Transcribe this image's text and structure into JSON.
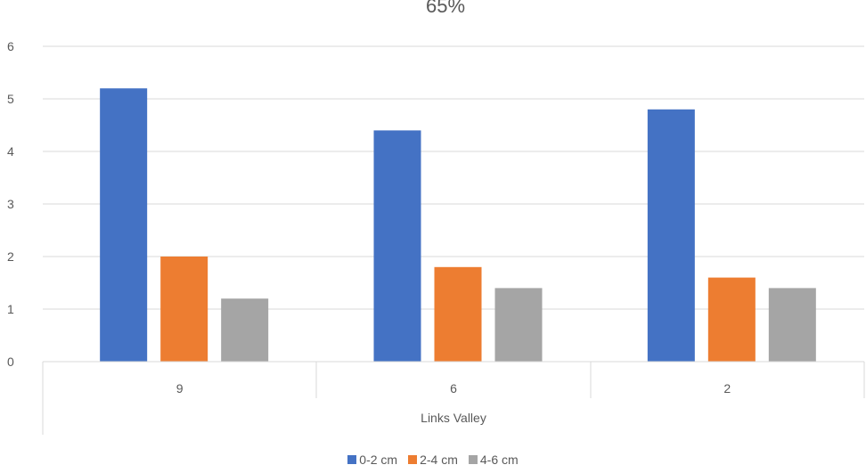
{
  "chart_data": {
    "type": "bar",
    "title": "65%",
    "categories": [
      "9",
      "6",
      "2"
    ],
    "group_label": "Links Valley",
    "series": [
      {
        "name": "0-2 cm",
        "color": "#4472C4",
        "values": [
          5.2,
          4.4,
          4.8
        ]
      },
      {
        "name": "2-4 cm",
        "color": "#ED7D31",
        "values": [
          2.0,
          1.8,
          1.6
        ]
      },
      {
        "name": "4-6 cm",
        "color": "#A5A5A5",
        "values": [
          1.2,
          1.4,
          1.4
        ]
      }
    ],
    "y_ticks": [
      "0",
      "1",
      "2",
      "3",
      "4",
      "5",
      "6"
    ],
    "ylim": [
      0,
      6
    ],
    "grid": true,
    "legend_position": "bottom"
  }
}
